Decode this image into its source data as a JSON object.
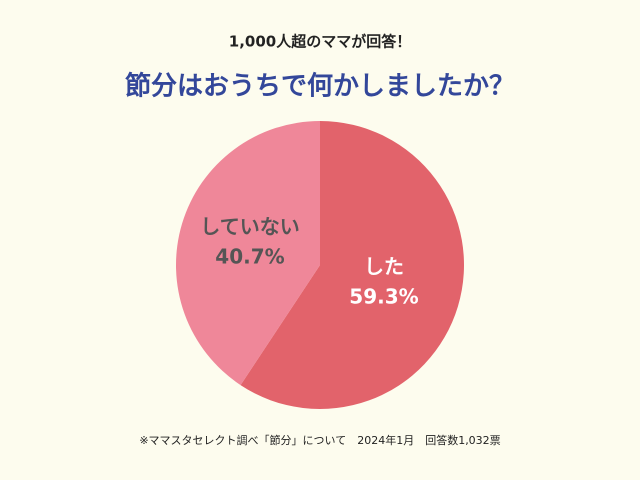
{
  "chart_data": {
    "type": "pie",
    "subtitle": "1,000人超のママが回答！",
    "title": "節分はおうちで何かしましたか？",
    "categories": [
      "した",
      "していない"
    ],
    "values": [
      59.3,
      40.7
    ],
    "value_labels": [
      "59.3%",
      "40.7%"
    ],
    "colors": [
      "#e2636b",
      "#ef8799"
    ],
    "note": "※ママスタセレクト調べ「節分」について　2024年1月　回答数1,032票"
  }
}
